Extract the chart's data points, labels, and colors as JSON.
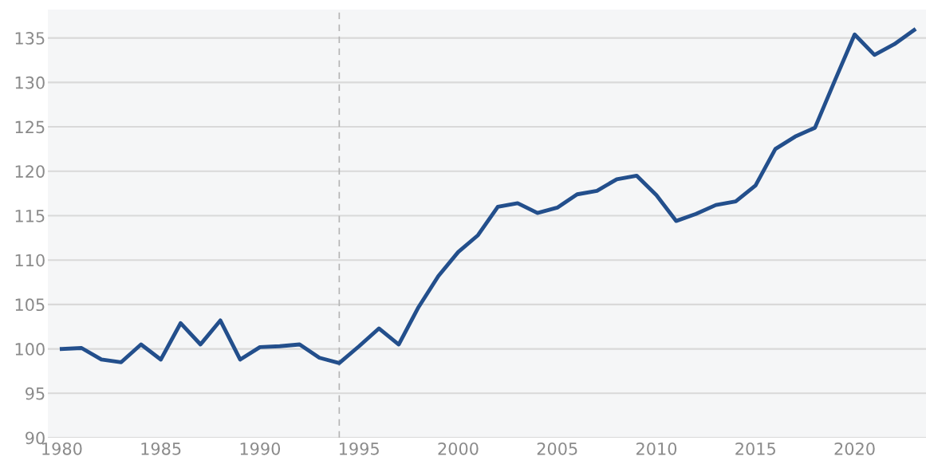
{
  "chart_data": {
    "type": "line",
    "x": [
      1980,
      1981,
      1982,
      1983,
      1984,
      1985,
      1986,
      1987,
      1988,
      1989,
      1990,
      1991,
      1992,
      1993,
      1994,
      1995,
      1996,
      1997,
      1998,
      1999,
      2000,
      2001,
      2002,
      2003,
      2004,
      2005,
      2006,
      2007,
      2008,
      2009,
      2010,
      2011,
      2012,
      2013,
      2014,
      2015,
      2016,
      2017,
      2018,
      2019,
      2020,
      2021,
      2022,
      2023
    ],
    "series": [
      {
        "color": "#234f8c",
        "values": [
          100,
          100.1,
          98.8,
          98.5,
          100.5,
          98.8,
          102.9,
          100.5,
          103.2,
          98.8,
          100.2,
          100.3,
          100.5,
          99.0,
          98.4,
          100.3,
          102.3,
          100.5,
          104.7,
          108.2,
          110.9,
          112.8,
          116.0,
          116.4,
          115.3,
          115.9,
          117.4,
          117.8,
          119.1,
          119.5,
          117.3,
          114.4,
          115.2,
          116.2,
          116.6,
          118.4,
          122.5,
          123.9,
          124.9,
          130.2,
          135.4,
          133.1,
          134.3,
          135.9
        ]
      }
    ],
    "xlim": [
      1979.3,
      2023.6
    ],
    "xticks": [
      1980,
      1985,
      1990,
      1995,
      2000,
      2005,
      2010,
      2015,
      2020
    ],
    "ylim": [
      90,
      138.2
    ],
    "yticks": [
      90,
      95,
      100,
      105,
      110,
      115,
      120,
      125,
      130,
      135
    ],
    "grid": "y",
    "legend": false,
    "marker": "none",
    "line_style": "solid",
    "ref_lines": [
      {
        "axis": "x",
        "value": 1994,
        "color": "#b5b5b5",
        "line_style": "dashed"
      }
    ]
  }
}
